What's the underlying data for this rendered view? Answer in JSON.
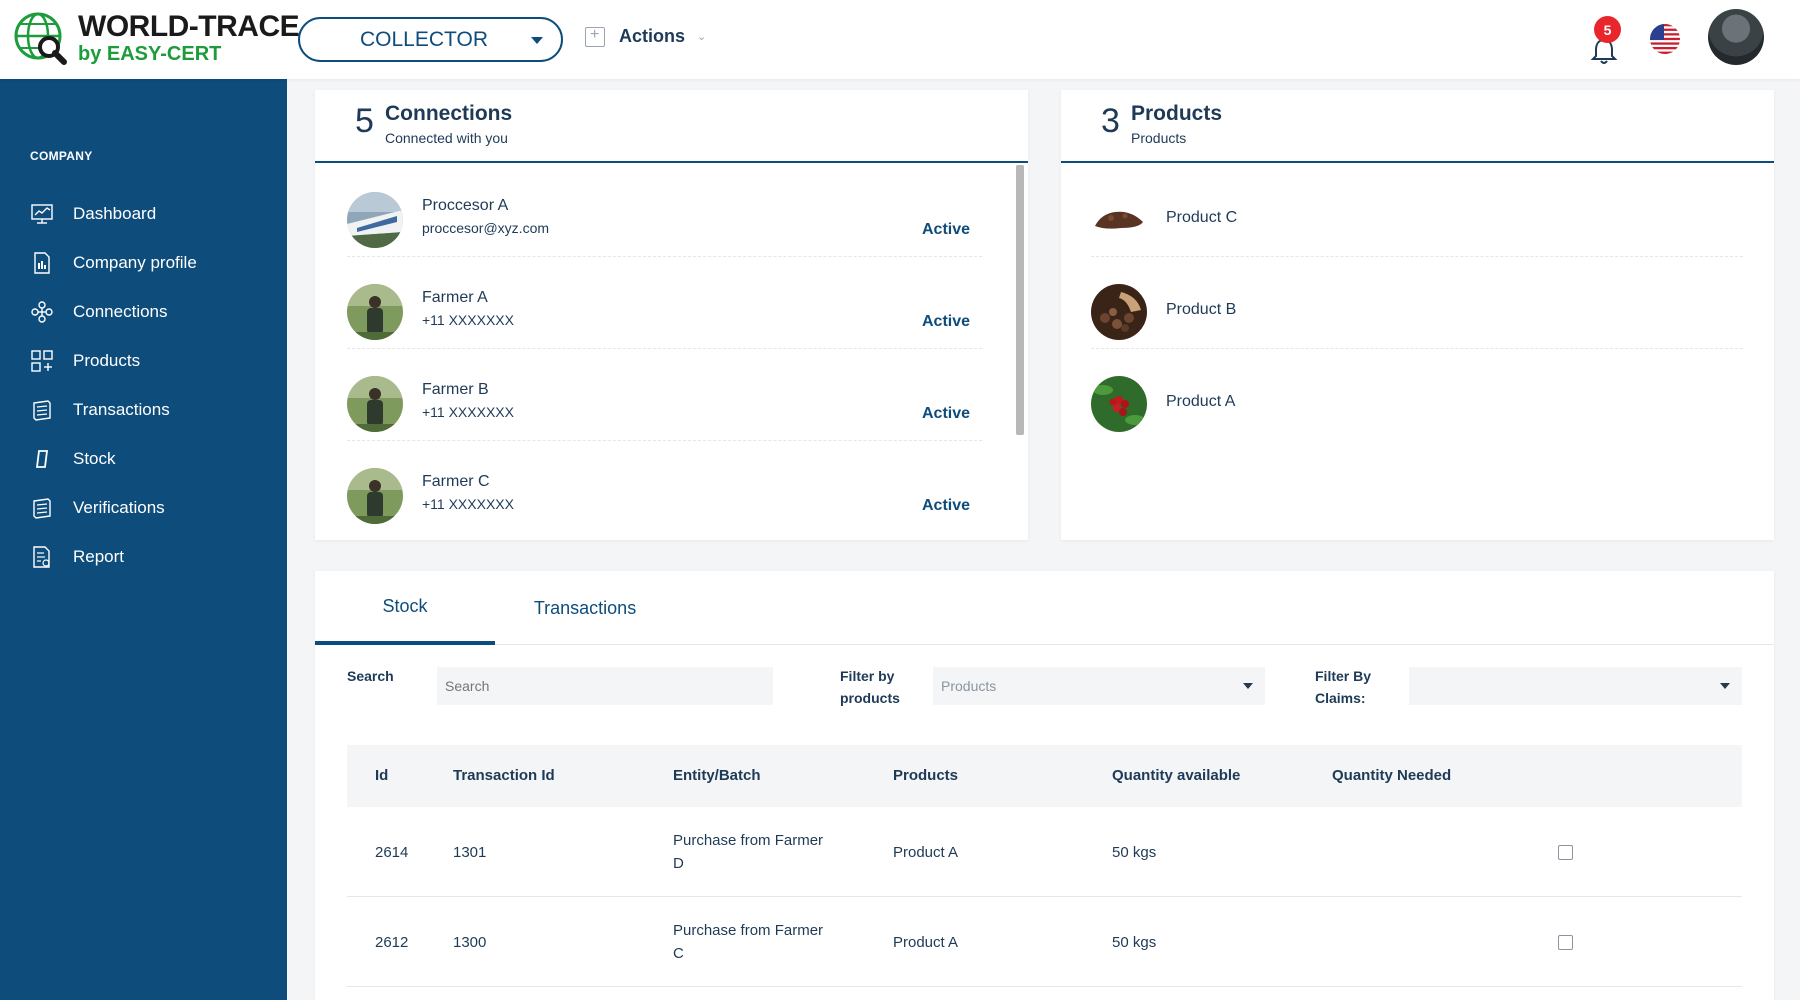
{
  "brand": {
    "title": "WORLD-TRACE",
    "subtitle": "by EASY-CERT",
    "green": "#1c9c3a",
    "primary": "#0e4c7c"
  },
  "header": {
    "role_select": "COLLECTOR",
    "actions_label": "Actions",
    "notification_count": "5"
  },
  "sidebar": {
    "heading": "COMPANY",
    "items": [
      {
        "label": "Dashboard",
        "icon": "chart-icon"
      },
      {
        "label": "Company profile",
        "icon": "document-icon"
      },
      {
        "label": "Connections",
        "icon": "network-icon"
      },
      {
        "label": "Products",
        "icon": "grid-icon"
      },
      {
        "label": "Transactions",
        "icon": "stack-icon"
      },
      {
        "label": "Stock",
        "icon": "stock-icon"
      },
      {
        "label": "Verifications",
        "icon": "stack-icon"
      },
      {
        "label": "Report",
        "icon": "report-icon"
      }
    ]
  },
  "connections": {
    "count": "5",
    "title": "Connections",
    "subtitle": "Connected with you",
    "items": [
      {
        "name": "Proccesor A",
        "contact": "proccesor@xyz.com",
        "status": "Active"
      },
      {
        "name": "Farmer A",
        "contact": "+11 XXXXXXX",
        "status": "Active"
      },
      {
        "name": "Farmer B",
        "contact": "+11 XXXXXXX",
        "status": "Active"
      },
      {
        "name": "Farmer C",
        "contact": "+11 XXXXXXX",
        "status": "Active"
      }
    ]
  },
  "products": {
    "count": "3",
    "title": "Products",
    "subtitle": "Products",
    "items": [
      {
        "name": "Product C"
      },
      {
        "name": "Product B"
      },
      {
        "name": "Product A"
      }
    ]
  },
  "stock_panel": {
    "tabs": [
      "Stock",
      "Transactions"
    ],
    "active_tab": "Stock",
    "search_label": "Search",
    "search_placeholder": "Search",
    "filter_products_label_1": "Filter by",
    "filter_products_label_2": "products",
    "filter_products_value": "Products",
    "filter_claims_label_1": "Filter By",
    "filter_claims_label_2": "Claims:",
    "filter_claims_value": "",
    "columns": [
      "Id",
      "Transaction Id",
      "Entity/Batch",
      "Products",
      "Quantity available",
      "Quantity Needed"
    ],
    "rows": [
      {
        "id": "2614",
        "transaction_id": "1301",
        "entity_1": "Purchase from Farmer",
        "entity_2": "D",
        "product": "Product A",
        "qty_available": "50 kgs",
        "qty_needed": ""
      },
      {
        "id": "2612",
        "transaction_id": "1300",
        "entity_1": "Purchase from Farmer",
        "entity_2": "C",
        "product": "Product A",
        "qty_available": "50 kgs",
        "qty_needed": ""
      }
    ]
  }
}
